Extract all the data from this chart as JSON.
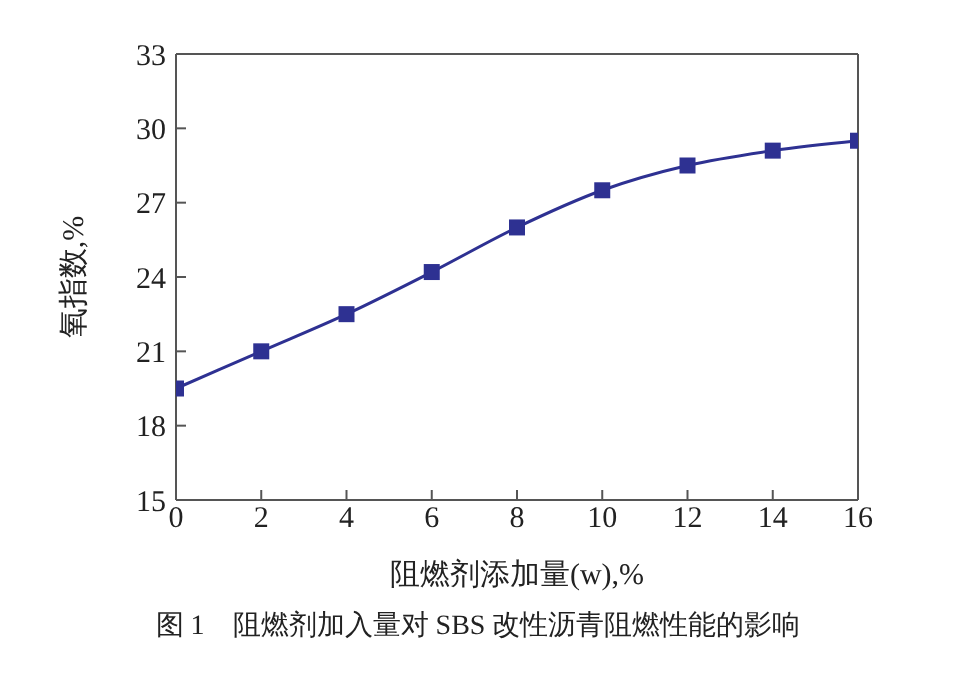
{
  "chart_data": {
    "type": "line",
    "title": "图 1　阻燃剂加入量对 SBS 改性沥青阻燃性能的影响",
    "xlabel": "阻燃剂添加量(w),%",
    "ylabel": "氧指数,%",
    "x": [
      0,
      2,
      4,
      6,
      8,
      10,
      12,
      14,
      16
    ],
    "series": [
      {
        "color": "#2e3192",
        "values": [
          19.5,
          21.0,
          22.5,
          24.2,
          26.0,
          27.5,
          28.5,
          29.1,
          29.5
        ]
      }
    ],
    "xlim": [
      0,
      16
    ],
    "xticks": [
      0,
      2,
      4,
      6,
      8,
      10,
      12,
      14,
      16
    ],
    "ylim": [
      15,
      33
    ],
    "yticks": [
      15,
      18,
      21,
      24,
      27,
      30,
      33
    ],
    "grid": false,
    "legend": false,
    "marker": "square",
    "line_style": "solid"
  }
}
